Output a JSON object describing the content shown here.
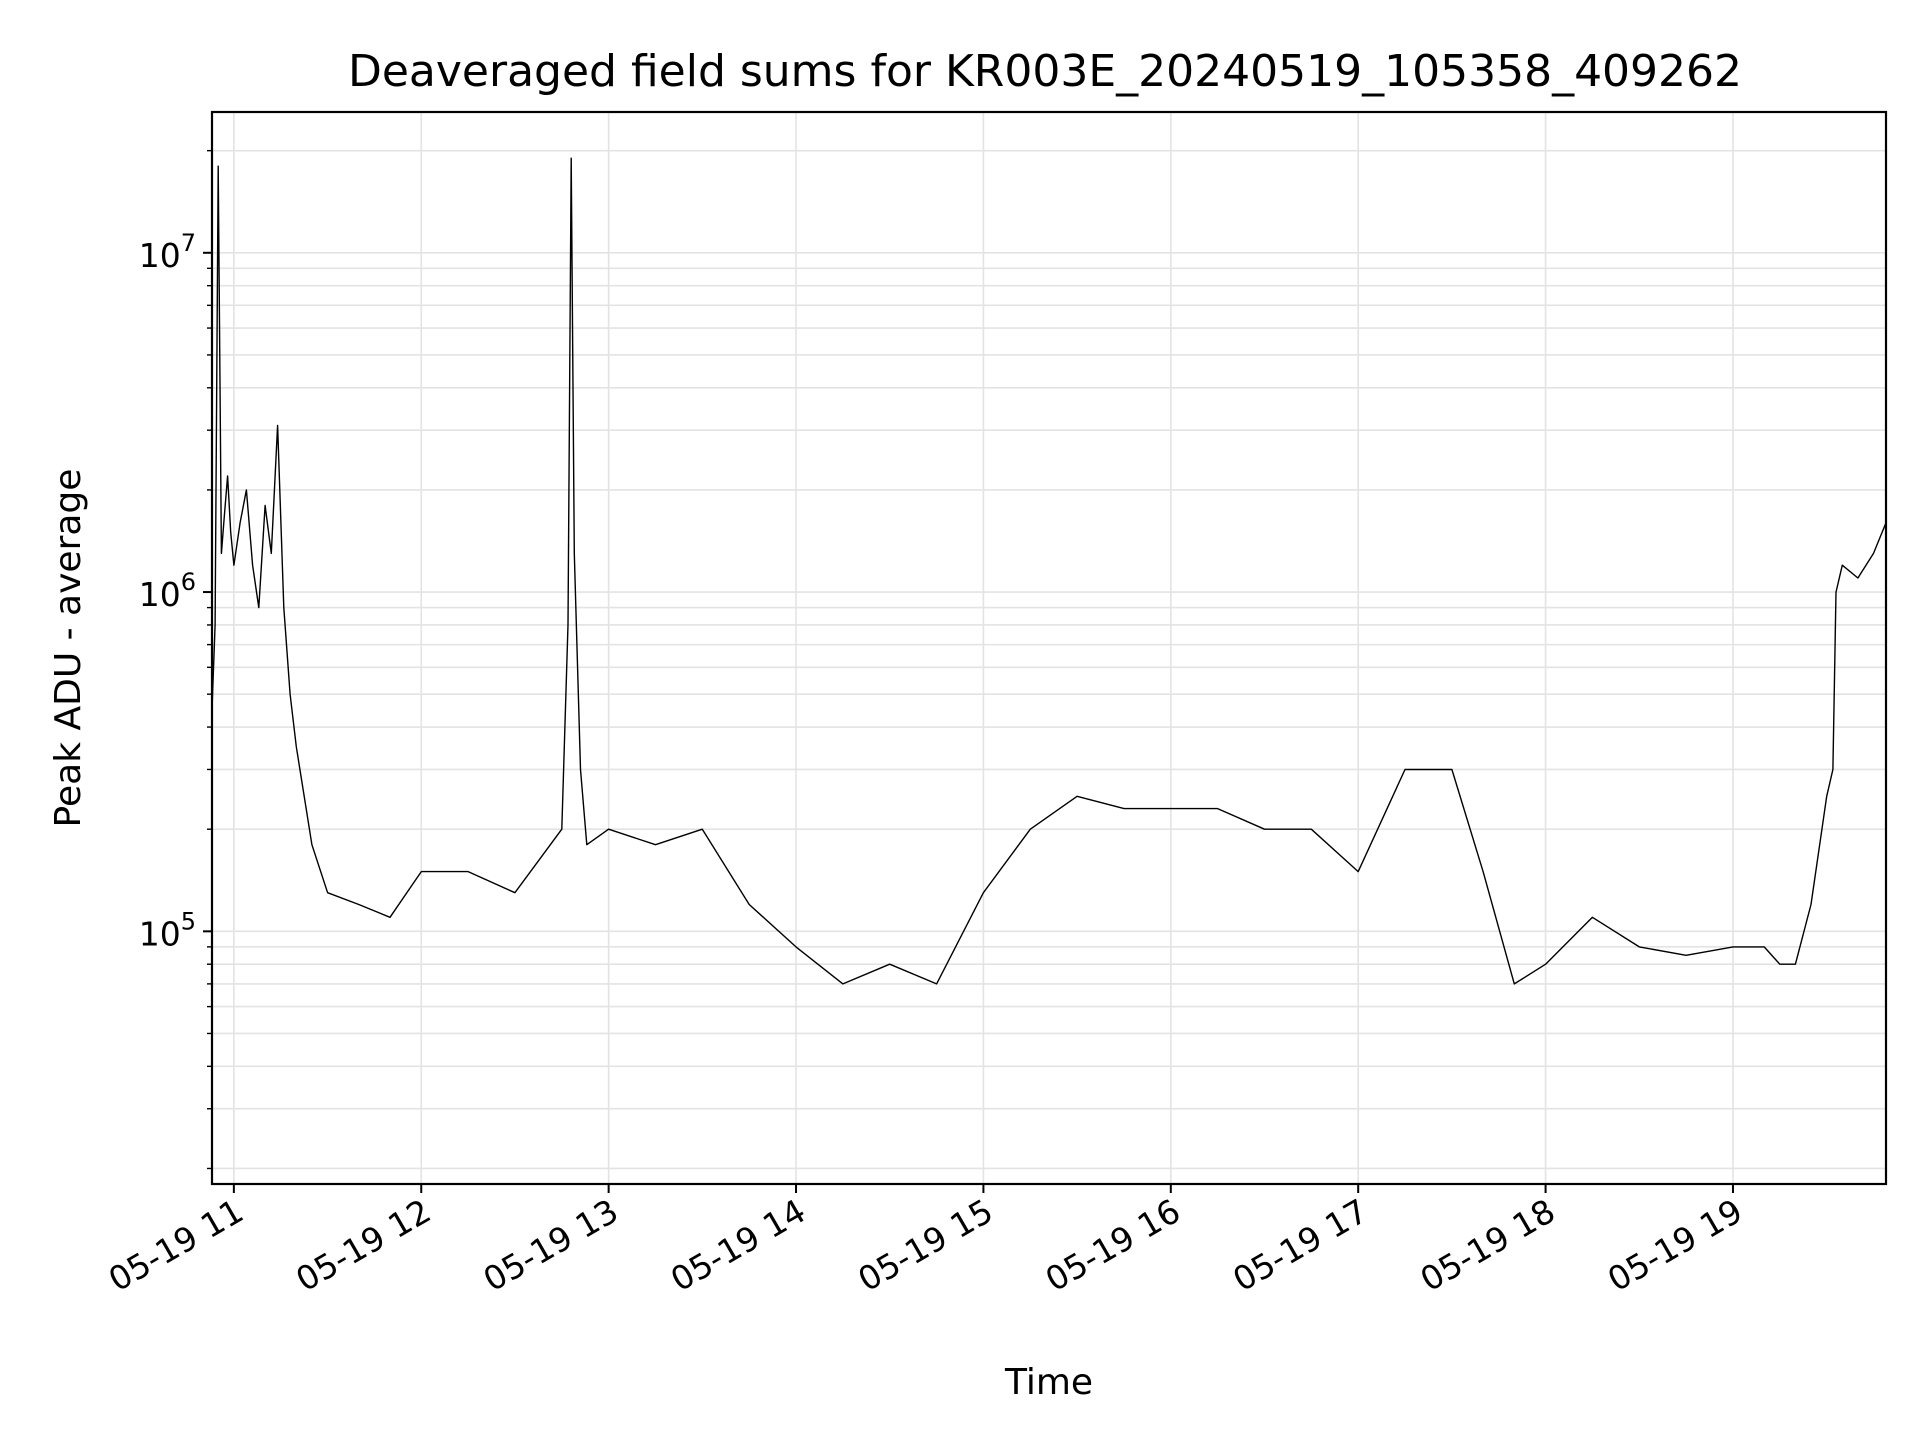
{
  "chart_data": {
    "type": "line",
    "title": "Deaveraged field sums for KR003E_20240519_105358_409262",
    "xlabel": "Time",
    "ylabel": "Peak ADU - average",
    "yscale": "log",
    "ylim": [
      18000,
      26000000
    ],
    "xlim": [
      "05-19 10:53",
      "05-19 19:49"
    ],
    "grid": true,
    "line_color": "#000000",
    "grid_color": "#e3e3e3",
    "x_ticks": [
      {
        "value": "05-19 11:00",
        "label": "05-19 11"
      },
      {
        "value": "05-19 12:00",
        "label": "05-19 12"
      },
      {
        "value": "05-19 13:00",
        "label": "05-19 13"
      },
      {
        "value": "05-19 14:00",
        "label": "05-19 14"
      },
      {
        "value": "05-19 15:00",
        "label": "05-19 15"
      },
      {
        "value": "05-19 16:00",
        "label": "05-19 16"
      },
      {
        "value": "05-19 17:00",
        "label": "05-19 17"
      },
      {
        "value": "05-19 18:00",
        "label": "05-19 18"
      },
      {
        "value": "05-19 19:00",
        "label": "05-19 19"
      }
    ],
    "y_ticks": [
      {
        "value": 100000,
        "base": "10",
        "exp": "5"
      },
      {
        "value": 1000000,
        "base": "10",
        "exp": "6"
      },
      {
        "value": 10000000,
        "base": "10",
        "exp": "7"
      }
    ],
    "series": [
      {
        "x": [
          "05-19 10:53",
          "05-19 10:54",
          "05-19 10:55",
          "05-19 10:56",
          "05-19 10:57",
          "05-19 10:58",
          "05-19 10:59",
          "05-19 11:00",
          "05-19 11:02",
          "05-19 11:04",
          "05-19 11:06",
          "05-19 11:08",
          "05-19 11:10",
          "05-19 11:12",
          "05-19 11:14",
          "05-19 11:16",
          "05-19 11:18",
          "05-19 11:20",
          "05-19 11:25",
          "05-19 11:30",
          "05-19 11:40",
          "05-19 11:50",
          "05-19 12:00",
          "05-19 12:15",
          "05-19 12:30",
          "05-19 12:45",
          "05-19 12:47",
          "05-19 12:48",
          "05-19 12:49",
          "05-19 12:51",
          "05-19 12:53",
          "05-19 13:00",
          "05-19 13:15",
          "05-19 13:30",
          "05-19 13:45",
          "05-19 14:00",
          "05-19 14:15",
          "05-19 14:30",
          "05-19 14:45",
          "05-19 15:00",
          "05-19 15:15",
          "05-19 15:30",
          "05-19 15:45",
          "05-19 16:00",
          "05-19 16:15",
          "05-19 16:30",
          "05-19 16:45",
          "05-19 17:00",
          "05-19 17:15",
          "05-19 17:30",
          "05-19 17:40",
          "05-19 17:50",
          "05-19 18:00",
          "05-19 18:15",
          "05-19 18:30",
          "05-19 18:45",
          "05-19 19:00",
          "05-19 19:10",
          "05-19 19:15",
          "05-19 19:20",
          "05-19 19:25",
          "05-19 19:30",
          "05-19 19:32",
          "05-19 19:33",
          "05-19 19:35",
          "05-19 19:40",
          "05-19 19:45",
          "05-19 19:49"
        ],
        "y": [
          450000,
          800000,
          18000000,
          1300000,
          1700000,
          2200000,
          1500000,
          1200000,
          1600000,
          2000000,
          1200000,
          900000,
          1800000,
          1300000,
          3100000,
          900000,
          500000,
          350000,
          180000,
          130000,
          120000,
          110000,
          150000,
          150000,
          130000,
          200000,
          800000,
          19000000,
          1300000,
          300000,
          180000,
          200000,
          180000,
          200000,
          120000,
          90000,
          70000,
          80000,
          70000,
          130000,
          200000,
          250000,
          230000,
          230000,
          230000,
          200000,
          200000,
          150000,
          300000,
          300000,
          150000,
          70000,
          80000,
          110000,
          90000,
          85000,
          90000,
          90000,
          80000,
          80000,
          120000,
          250000,
          300000,
          1000000,
          1200000,
          1100000,
          1300000,
          1600000
        ]
      }
    ]
  }
}
